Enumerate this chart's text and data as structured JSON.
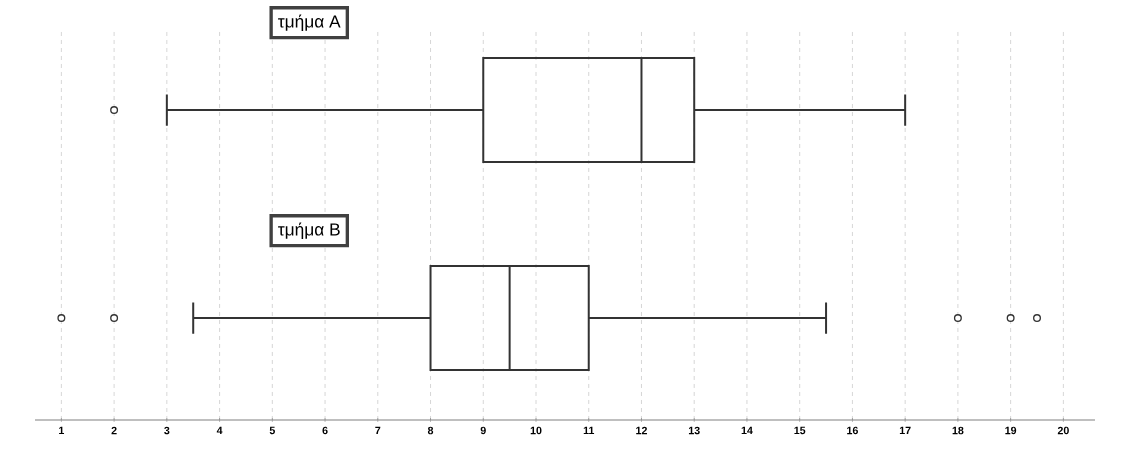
{
  "chart_data": {
    "type": "box",
    "orientation": "horizontal",
    "categories": [
      "τμήμα Α",
      "τμήμα Β"
    ],
    "boxes": [
      {
        "low": 3,
        "q1": 9,
        "median": 12,
        "q3": 13,
        "high": 17,
        "outliers": [
          2
        ]
      },
      {
        "low": 3.5,
        "q1": 8,
        "median": 9.5,
        "q3": 11,
        "high": 15.5,
        "outliers": [
          1,
          2,
          18,
          19,
          19.5
        ]
      }
    ],
    "color": "#333333",
    "xlim": [
      0.5,
      20.6
    ],
    "xticks": [
      1,
      2,
      3,
      4,
      5,
      6,
      7,
      8,
      9,
      10,
      11,
      12,
      13,
      14,
      15,
      16,
      17,
      18,
      19,
      20
    ],
    "grid": true
  }
}
